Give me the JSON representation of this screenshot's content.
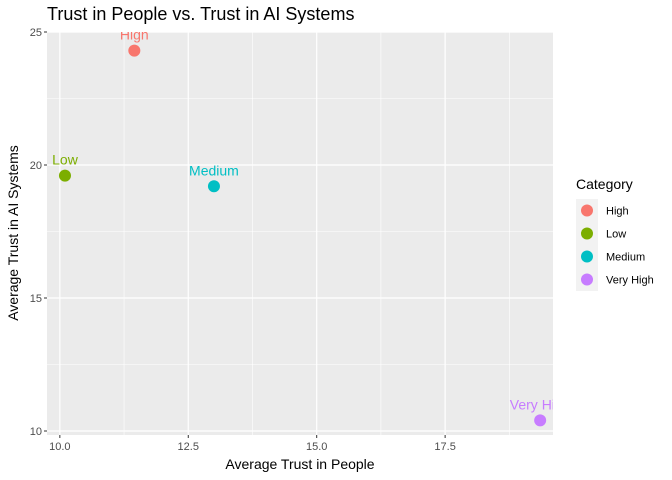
{
  "chart_data": {
    "type": "scatter",
    "title": "Trust in People vs. Trust in AI Systems",
    "xlabel": "Average Trust in People",
    "ylabel": "Average Trust in AI Systems",
    "xlim": [
      9.75,
      19.6
    ],
    "ylim": [
      9.85,
      25.0
    ],
    "xticks": [
      10.0,
      12.5,
      15.0,
      17.5
    ],
    "xtick_labels": [
      "10.0",
      "12.5",
      "15.0",
      "17.5"
    ],
    "yticks": [
      10,
      15,
      20,
      25
    ],
    "ytick_labels": [
      "10",
      "15",
      "20",
      "25"
    ],
    "grid": true,
    "legend": {
      "title": "Category",
      "placement": "right",
      "entries": [
        "High",
        "Low",
        "Medium",
        "Very High"
      ]
    },
    "points": [
      {
        "category": "High",
        "label": "High",
        "x": 11.45,
        "y": 24.3,
        "color": "#F8766D"
      },
      {
        "category": "Low",
        "label": "Low",
        "x": 10.1,
        "y": 19.6,
        "color": "#7CAE00"
      },
      {
        "category": "Medium",
        "label": "Medium",
        "x": 13.0,
        "y": 19.2,
        "color": "#00BFC4"
      },
      {
        "category": "Very High",
        "label": "Very High",
        "x": 19.35,
        "y": 10.4,
        "color": "#C77CFF"
      }
    ],
    "colors": {
      "panel_background": "#EBEBEB",
      "grid": "#FFFFFF"
    }
  }
}
